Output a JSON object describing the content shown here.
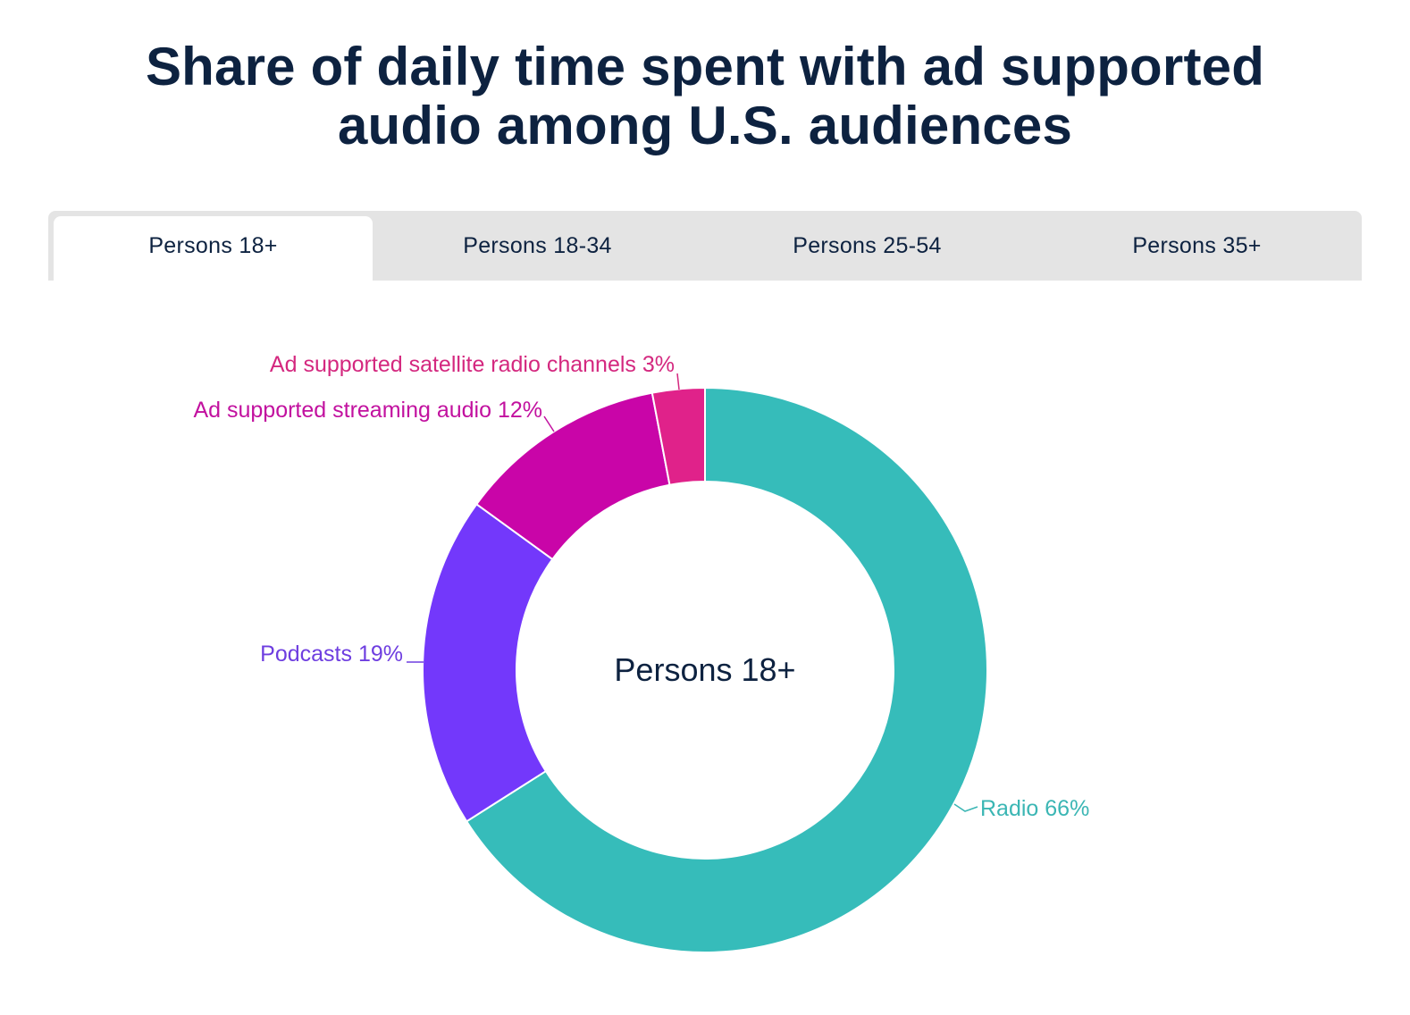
{
  "header": {
    "title_line1": "Share of daily time spent with ad supported",
    "title_line2": "audio among U.S. audiences"
  },
  "tabs": [
    {
      "label": "Persons 18+",
      "active": true
    },
    {
      "label": "Persons 18-34",
      "active": false
    },
    {
      "label": "Persons 25-54",
      "active": false
    },
    {
      "label": "Persons 35+",
      "active": false
    }
  ],
  "chart_data": {
    "type": "pie",
    "variant": "donut",
    "title": "Share of daily time spent with ad supported audio among U.S. audiences",
    "center_label": "Persons 18+",
    "start_angle": "top",
    "direction": "clockwise",
    "unit": "%",
    "slices": [
      {
        "name": "Radio",
        "value": 66,
        "label": "Radio 66%",
        "color": "#36bcba"
      },
      {
        "name": "Podcasts",
        "value": 19,
        "label": "Podcasts 19%",
        "color": "#7338fb"
      },
      {
        "name": "Ad supported streaming audio",
        "value": 12,
        "label": "Ad supported streaming audio 12%",
        "color": "#c905a8"
      },
      {
        "name": "Ad supported satellite radio channels",
        "value": 3,
        "label": "Ad supported satellite radio channels 3%",
        "color": "#e0228a"
      }
    ],
    "label_colors": {
      "Radio": "#3bb6b4",
      "Podcasts": "#6e3ee0",
      "Ad supported streaming audio": "#c2119f",
      "Ad supported satellite radio channels": "#d4287f"
    }
  }
}
